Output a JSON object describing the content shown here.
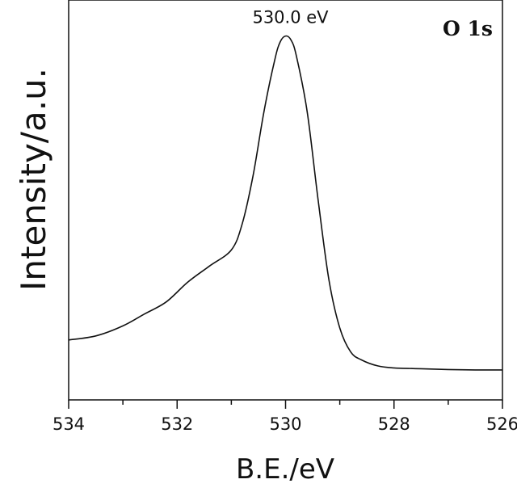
{
  "chart_data": {
    "type": "line",
    "panel_label": "O 1s",
    "xlabel": "B.E./eV",
    "ylabel": "Intensity/a.u.",
    "xlim": [
      534,
      526
    ],
    "x_reversed": true,
    "x_ticks": [
      "534",
      "532",
      "530",
      "528",
      "526"
    ],
    "y_ticks_shown": false,
    "grid": false,
    "legend": "none",
    "annotations": [
      {
        "text": "530.0 eV",
        "x": 530.0
      }
    ],
    "series": [
      {
        "x": [
          534.0,
          533.5,
          533.0,
          532.6,
          532.2,
          531.8,
          531.4,
          531.0,
          530.8,
          530.6,
          530.4,
          530.2,
          530.1,
          530.0,
          529.9,
          529.8,
          529.6,
          529.4,
          529.2,
          529.0,
          528.8,
          528.6,
          528.3,
          528.0,
          527.5,
          527.0,
          526.5,
          526.0
        ],
        "y": [
          0.15,
          0.16,
          0.185,
          0.215,
          0.245,
          0.295,
          0.335,
          0.375,
          0.44,
          0.56,
          0.72,
          0.85,
          0.895,
          0.91,
          0.9,
          0.86,
          0.72,
          0.5,
          0.3,
          0.18,
          0.12,
          0.1,
          0.085,
          0.08,
          0.078,
          0.076,
          0.075,
          0.075
        ]
      }
    ]
  }
}
